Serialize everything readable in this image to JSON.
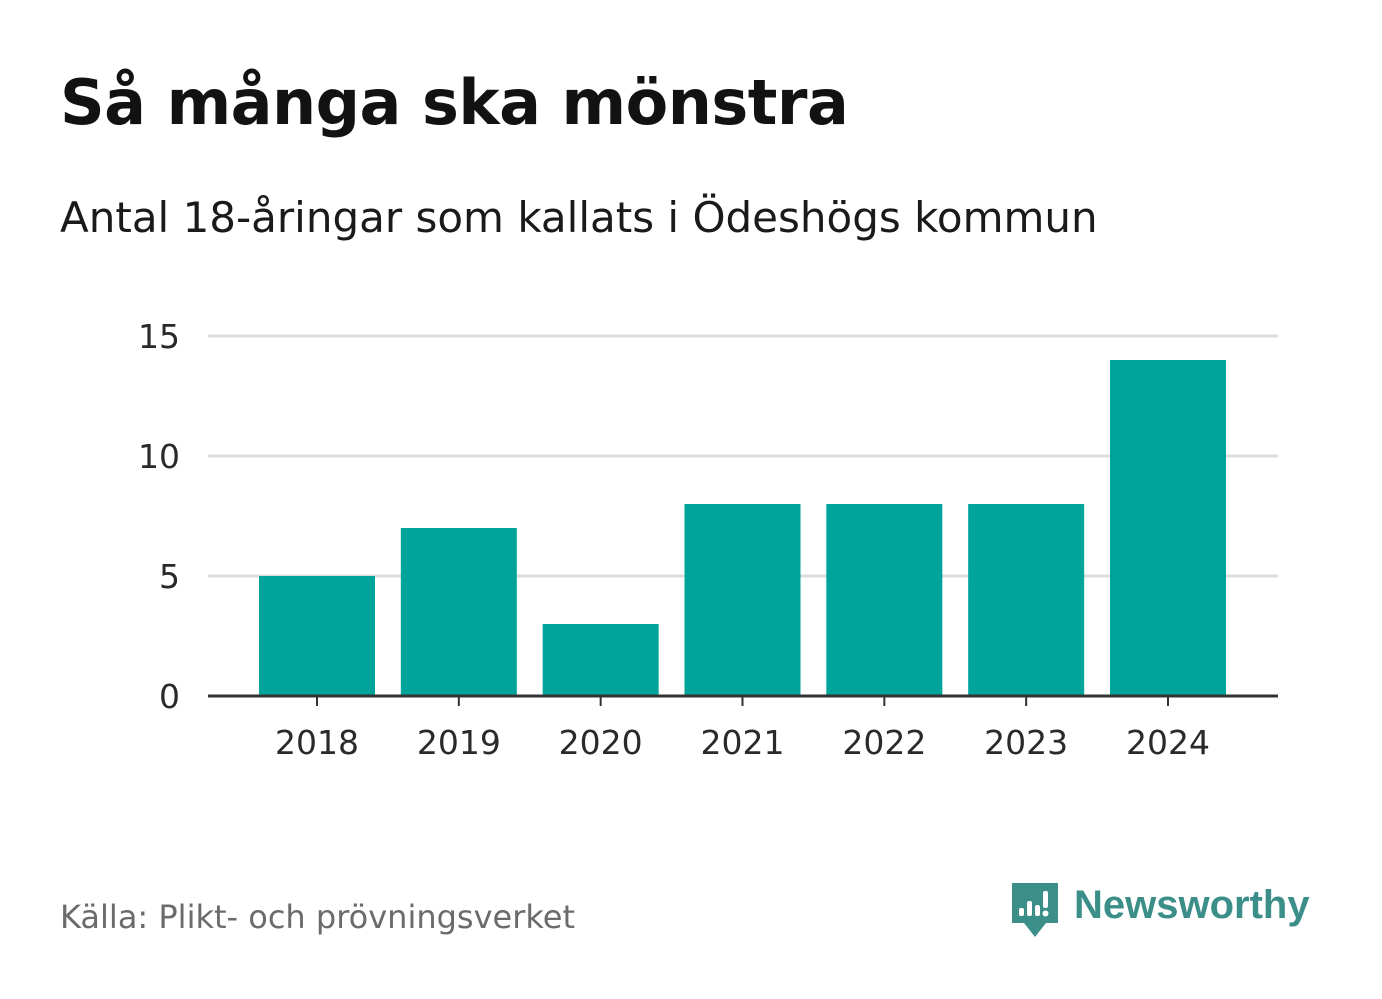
{
  "header": {
    "title": "Så många ska mönstra",
    "subtitle": "Antal 18-åringar som kallats i Ödeshögs kommun"
  },
  "footer": {
    "source": "Källa: Plikt- och prövningsverket",
    "brand": "Newsworthy",
    "brand_icon": "newsworthy-logo-icon"
  },
  "colors": {
    "bar": "#00a49a",
    "grid": "#dddddd",
    "axis": "#333333",
    "brand": "#3c8f89"
  },
  "chart_data": {
    "type": "bar",
    "title": "Så många ska mönstra",
    "subtitle": "Antal 18-åringar som kallats i Ödeshögs kommun",
    "categories": [
      "2018",
      "2019",
      "2020",
      "2021",
      "2022",
      "2023",
      "2024"
    ],
    "values": [
      5,
      7,
      3,
      8,
      8,
      8,
      14
    ],
    "ylim": [
      0,
      15
    ],
    "yticks": [
      0,
      5,
      10,
      15
    ],
    "xlabel": "",
    "ylabel": "",
    "grid": true,
    "legend": "none"
  }
}
